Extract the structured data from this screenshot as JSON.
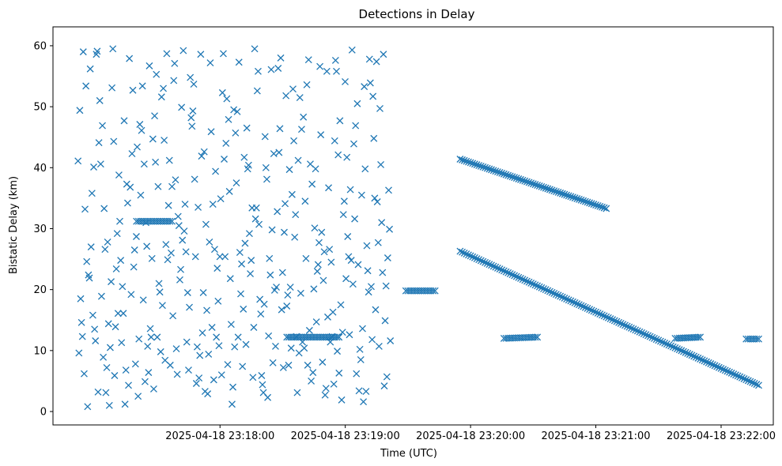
{
  "chart_data": {
    "type": "scatter",
    "title": "Detections in Delay",
    "xlabel": "Time (UTC)",
    "ylabel": "Bistatic Delay (km)",
    "marker": "x",
    "color": "#1f77b4",
    "xlim": [
      "2025-04-18T23:16:40Z",
      "2025-04-18T23:22:25Z"
    ],
    "ylim": [
      -2.2,
      63.1
    ],
    "xticks": [
      "2025-04-18 23:18:00",
      "2025-04-18 23:19:00",
      "2025-04-18 23:20:00",
      "2025-04-18 23:21:00",
      "2025-04-18 23:22:00"
    ],
    "yticks": [
      "0",
      "10",
      "20",
      "30",
      "40",
      "50",
      "60"
    ],
    "grid": false,
    "legend": "none",
    "series": [
      {
        "x_start": "2025-04-18T23:16:52Z",
        "interval_seconds": 5,
        "tracks": [
          {
            "x_start": "2025-04-18T23:19:55Z",
            "x_end": "2025-04-18T23:22:18Z",
            "y_start": 26.3,
            "y_end": 4.3,
            "step_seconds": 1
          },
          {
            "x_start": "2025-04-18T23:19:55Z",
            "x_end": "2025-04-18T23:21:05Z",
            "y_start": 41.4,
            "y_end": 33.3,
            "step_seconds": 1
          },
          {
            "x_start": "2025-04-18T23:17:20Z",
            "x_end": "2025-04-18T23:17:37Z",
            "y_start": 31.2,
            "y_end": 31.2,
            "step_seconds": 1
          },
          {
            "x_start": "2025-04-18T23:18:32Z",
            "x_end": "2025-04-18T23:18:57Z",
            "y_start": 12.2,
            "y_end": 12.2,
            "step_seconds": 1
          },
          {
            "x_start": "2025-04-18T23:19:29Z",
            "x_end": "2025-04-18T23:19:43Z",
            "y_start": 19.8,
            "y_end": 19.8,
            "step_seconds": 1
          },
          {
            "x_start": "2025-04-18T23:20:16Z",
            "x_end": "2025-04-18T23:20:32Z",
            "y_start": 12.0,
            "y_end": 12.2,
            "step_seconds": 1
          },
          {
            "x_start": "2025-04-18T23:21:38Z",
            "x_end": "2025-04-18T23:21:50Z",
            "y_start": 12.0,
            "y_end": 12.2,
            "step_seconds": 1
          },
          {
            "x_start": "2025-04-18T23:22:12Z",
            "x_end": "2025-04-18T23:22:18Z",
            "y_start": 11.9,
            "y_end": 11.9,
            "step_seconds": 1
          }
        ],
        "clutter": [
          [
            41.1,
            12.3,
            24.6,
            18.5,
            33.2,
            9.6,
            59.0,
            0.8,
            14.6,
            53.4,
            49.4,
            6.2
          ],
          [
            22.4,
            15.8,
            59.1,
            27.0,
            11.6,
            21.9,
            40.1,
            3.2,
            35.8,
            58.6,
            56.2,
            13.5
          ],
          [
            44.1,
            8.9,
            27.8,
            18.9,
            3.1,
            51.0,
            33.3,
            14.4,
            46.9,
            7.2,
            40.6,
            26.6
          ],
          [
            1.0,
            44.3,
            16.1,
            53.1,
            23.4,
            10.5,
            5.9,
            38.8,
            59.5,
            29.2,
            21.3,
            13.9
          ],
          [
            31.2,
            47.7,
            4.3,
            20.5,
            37.3,
            24.8,
            1.2,
            57.9,
            16.1,
            34.2,
            11.3,
            6.8
          ],
          [
            36.8,
            26.5,
            11.9,
            52.7,
            43.4,
            19.2,
            7.8,
            47.1,
            23.7,
            2.5,
            42.3,
            28.7
          ],
          [
            35.5,
            4.9,
            56.7,
            18.3,
            10.7,
            46.1,
            31.0,
            13.6,
            40.6,
            6.4,
            53.4,
            27.1
          ],
          [
            12.2,
            40.9,
            19.6,
            3.7,
            36.9,
            25.1,
            55.3,
            9.8,
            48.5,
            21.0,
            44.7,
            12.2
          ],
          [
            51.6,
            27.4,
            7.6,
            44.5,
            33.8,
            17.4,
            58.7,
            26.0,
            8.4,
            41.2,
            53.0,
            24.9
          ],
          [
            36.9,
            10.3,
            23.3,
            57.1,
            30.5,
            15.7,
            6.1,
            49.9,
            38.0,
            21.6,
            54.3,
            32.0
          ],
          [
            28.1,
            11.4,
            48.2,
            34.0,
            17.1,
            59.2,
            19.5,
            46.8,
            26.2,
            54.8,
            29.6,
            6.8
          ],
          [
            49.3,
            10.6,
            41.9,
            25.4,
            9.2,
            53.7,
            33.5,
            12.9,
            4.6,
            58.6,
            38.1,
            5.5
          ],
          [
            19.5,
            2.9,
            13.8,
            30.7,
            57.2,
            42.6,
            9.4,
            34.0,
            16.6,
            45.9,
            3.3,
            27.8
          ],
          [
            5.2,
            18.1,
            52.3,
            12.2,
            34.9,
            26.6,
            10.8,
            58.7,
            23.5,
            6.0,
            39.4,
            25.4
          ],
          [
            41.4,
            47.9,
            4.0,
            51.3,
            14.3,
            25.4,
            36.1,
            49.5,
            7.7,
            1.2,
            44.0,
            21.8
          ],
          [
            10.6,
            57.3,
            16.8,
            49.2,
            24.2,
            45.7,
            26.1,
            41.7,
            12.2,
            7.4,
            37.5,
            19.3
          ],
          [
            27.6,
            29.2,
            13.8,
            39.8,
            33.4,
            11.0,
            22.6,
            59.5,
            40.4,
            5.6,
            46.5,
            24.8
          ],
          [
            31.6,
            18.4,
            17.6,
            55.8,
            4.4,
            33.4,
            16.0,
            45.1,
            30.7,
            3.1,
            52.6,
            5.9
          ],
          [
            40.0,
            22.4,
            19.9,
            12.4,
            8.0,
            38.1,
            56.1,
            10.7,
            25.1,
            42.3,
            2.3,
            29.8
          ],
          [
            20.4,
            58.0,
            34.1,
            42.5,
            7.2,
            32.8,
            16.7,
            51.8,
            46.4,
            29.4,
            56.3,
            22.8
          ],
          [
            17.3,
            10.4,
            32.3,
            39.7,
            44.4,
            19.1,
            35.6,
            12.3,
            20.4,
            28.6,
            7.6,
            52.9
          ],
          [
            3.1,
            46.3,
            25.1,
            51.5,
            10.4,
            41.2,
            11.4,
            53.6,
            19.4,
            34.5,
            9.6,
            48.3
          ],
          [
            7.6,
            37.3,
            14.7,
            40.6,
            30.1,
            57.7,
            6.4,
            23.0,
            5.0,
            39.8,
            13.3,
            20.1
          ],
          [
            24.1,
            8.1,
            55.8,
            45.4,
            2.7,
            27.7,
            21.5,
            15.5,
            29.4,
            3.8,
            56.6,
            26.2
          ],
          [
            36.7,
            16.3,
            9.9,
            24.5,
            57.6,
            26.6,
            4.5,
            42.1,
            12.3,
            55.8,
            11.4,
            44.4
          ],
          [
            6.3,
            32.3,
            28.7,
            1.9,
            21.8,
            47.7,
            34.5,
            25.4,
            13.0,
            41.7,
            17.5,
            54.1
          ],
          [
            12.6,
            43.9,
            24.1,
            59.3,
            6.2,
            36.4,
            31.6,
            3.4,
            20.9,
            50.5,
            24.8,
            46.9
          ],
          [
            10.2,
            53.3,
            19.6,
            13.6,
            27.2,
            8.5,
            39.8,
            57.8,
            1.6,
            23.1,
            35.5,
            3.3
          ],
          [
            53.9,
            35.0,
            10.7,
            51.7,
            34.4,
            20.5,
            16.7,
            49.7,
            44.8,
            27.7,
            11.8,
            57.4
          ],
          [
            40.5,
            14.9,
            29.9,
            58.6,
            25.2,
            31.0,
            20.6,
            11.6,
            4.2,
            36.3,
            22.8,
            5.7
          ]
        ]
      }
    ]
  }
}
